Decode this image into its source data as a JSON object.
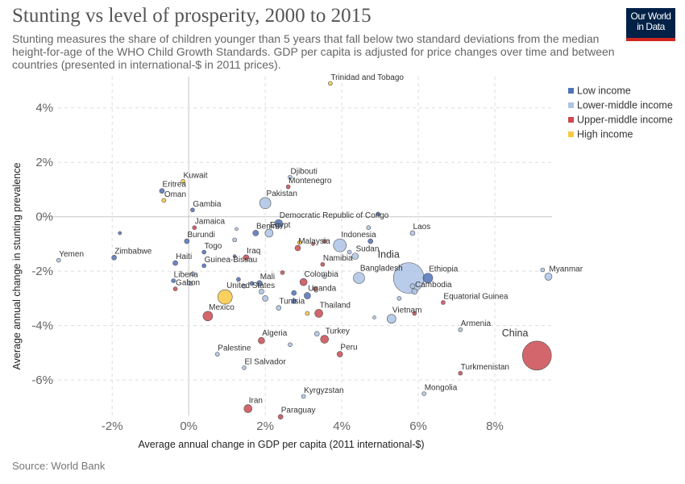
{
  "header": {
    "title": "Stunting vs level of prosperity, 2000 to 2015",
    "subtitle": "Stunting measures the share of children younger than 5 years that fall below two standard deviations from the median height-for-age of the WHO Child Growth Standards. GDP per capita is adjusted for price changes over time and between countries (presented in international-$ in 2011 prices)."
  },
  "logo": {
    "line1": "Our World",
    "line2": "in Data"
  },
  "footer": {
    "source": "Source: World Bank"
  },
  "colors": {
    "Low income": "#4f72b8",
    "Lower-middle income": "#adc3e6",
    "Upper-middle income": "#cb4a52",
    "High income": "#f9c842"
  },
  "chart_data": {
    "type": "scatter",
    "xlabel": "Average annual change in GDP per capita (2011 international-$)",
    "ylabel": "Average annual change in stunting prevalence",
    "xlim": [
      -3.9,
      9.6
    ],
    "ylim": [
      -7.3,
      5.0
    ],
    "xticks": [
      -2,
      0,
      2,
      4,
      6,
      8
    ],
    "yticks": [
      -6,
      -4,
      -2,
      0,
      2,
      4
    ],
    "xtick_labels": [
      "-2%",
      "0%",
      "2%",
      "4%",
      "6%",
      "8%"
    ],
    "ytick_labels": [
      "-6%",
      "-4%",
      "-2%",
      "0%",
      "2%",
      "4%"
    ],
    "grid": true,
    "legend_position": "top-right",
    "legend": [
      "Low income",
      "Lower-middle income",
      "Upper-middle income",
      "High income"
    ],
    "points": [
      {
        "label": "Trinidad and Tobago",
        "x": 3.7,
        "y": 4.9,
        "size": 2.5,
        "group": "High income"
      },
      {
        "label": "Kuwait",
        "x": -0.15,
        "y": 1.3,
        "size": 2.5,
        "group": "High income"
      },
      {
        "label": "Eritrea",
        "x": -0.7,
        "y": 0.95,
        "size": 3,
        "group": "Low income"
      },
      {
        "label": "Oman",
        "x": -0.65,
        "y": 0.6,
        "size": 2.5,
        "group": "High income"
      },
      {
        "label": "Gambia",
        "x": 0.1,
        "y": 0.25,
        "size": 2.5,
        "group": "Low income"
      },
      {
        "label": "Djibouti",
        "x": 2.65,
        "y": 1.45,
        "size": 2.5,
        "group": "Lower-middle income"
      },
      {
        "label": "Montenegro",
        "x": 2.6,
        "y": 1.1,
        "size": 2.5,
        "group": "Upper-middle income"
      },
      {
        "label": "Pakistan",
        "x": 2.0,
        "y": 0.5,
        "size": 7,
        "group": "Lower-middle income"
      },
      {
        "label": "Democratic Republic of Congo",
        "x": 2.35,
        "y": -0.25,
        "size": 5,
        "group": "Low income"
      },
      {
        "label": "Jamaica",
        "x": 0.15,
        "y": -0.4,
        "size": 2.5,
        "group": "Upper-middle income"
      },
      {
        "label": "Burundi",
        "x": -0.05,
        "y": -0.9,
        "size": 3,
        "group": "Low income"
      },
      {
        "label": "Benin",
        "x": 1.75,
        "y": -0.6,
        "size": 3.5,
        "group": "Low income"
      },
      {
        "label": "Egypt",
        "x": 2.1,
        "y": -0.6,
        "size": 5,
        "group": "Lower-middle income"
      },
      {
        "label": "Malaysia",
        "x": 2.85,
        "y": -1.15,
        "size": 3.5,
        "group": "Upper-middle income"
      },
      {
        "label": "Indonesia",
        "x": 3.95,
        "y": -1.05,
        "size": 8,
        "group": "Lower-middle income"
      },
      {
        "label": "Laos",
        "x": 5.85,
        "y": -0.6,
        "size": 3,
        "group": "Lower-middle income"
      },
      {
        "label": "Togo",
        "x": 0.4,
        "y": -1.3,
        "size": 2.5,
        "group": "Low income"
      },
      {
        "label": "Iraq",
        "x": 1.5,
        "y": -1.5,
        "size": 3.5,
        "group": "Upper-middle income"
      },
      {
        "label": "Guinea-Bissau",
        "x": 0.4,
        "y": -1.8,
        "size": 2.5,
        "group": "Low income"
      },
      {
        "label": "Sudan",
        "x": 4.35,
        "y": -1.45,
        "size": 4,
        "group": "Lower-middle income"
      },
      {
        "label": "Namibia",
        "x": 3.5,
        "y": -1.75,
        "size": 2.5,
        "group": "Upper-middle income"
      },
      {
        "label": "Yemen",
        "x": -3.4,
        "y": -1.6,
        "size": 2.5,
        "group": "Lower-middle income"
      },
      {
        "label": "Zimbabwe",
        "x": -1.95,
        "y": -1.5,
        "size": 3,
        "group": "Low income"
      },
      {
        "label": "Haiti",
        "x": -0.35,
        "y": -1.7,
        "size": 3,
        "group": "Low income"
      },
      {
        "label": "India",
        "x": 5.75,
        "y": -2.25,
        "size": 19,
        "group": "Lower-middle income"
      },
      {
        "label": "Ethiopia",
        "x": 6.25,
        "y": -2.25,
        "size": 6,
        "group": "Low income"
      },
      {
        "label": "Myanmar",
        "x": 9.4,
        "y": -2.2,
        "size": 4.5,
        "group": "Lower-middle income"
      },
      {
        "label": "Bangladesh",
        "x": 4.45,
        "y": -2.25,
        "size": 7,
        "group": "Lower-middle income"
      },
      {
        "label": "Colombia",
        "x": 3.0,
        "y": -2.4,
        "size": 4.5,
        "group": "Upper-middle income"
      },
      {
        "label": "Mali",
        "x": 1.85,
        "y": -2.45,
        "size": 3.5,
        "group": "Low income"
      },
      {
        "label": "Liberia",
        "x": -0.4,
        "y": -2.35,
        "size": 2.5,
        "group": "Low income"
      },
      {
        "label": "Gabon",
        "x": -0.35,
        "y": -2.65,
        "size": 2.5,
        "group": "Upper-middle income"
      },
      {
        "label": "United States",
        "x": 0.95,
        "y": -2.95,
        "size": 9,
        "group": "High income"
      },
      {
        "label": "Uganda",
        "x": 3.1,
        "y": -2.9,
        "size": 4,
        "group": "Low income"
      },
      {
        "label": "Cambodia",
        "x": 5.9,
        "y": -2.75,
        "size": 3.5,
        "group": "Lower-middle income"
      },
      {
        "label": "Equatorial Guinea",
        "x": 6.65,
        "y": -3.15,
        "size": 2.5,
        "group": "Upper-middle income"
      },
      {
        "label": "Tunisia",
        "x": 2.35,
        "y": -3.35,
        "size": 3,
        "group": "Lower-middle income"
      },
      {
        "label": "Mexico",
        "x": 0.5,
        "y": -3.65,
        "size": 6,
        "group": "Upper-middle income"
      },
      {
        "label": "Thailand",
        "x": 3.4,
        "y": -3.55,
        "size": 5,
        "group": "Upper-middle income"
      },
      {
        "label": "Vietnam",
        "x": 5.3,
        "y": -3.75,
        "size": 5.5,
        "group": "Lower-middle income"
      },
      {
        "label": "Armenia",
        "x": 7.1,
        "y": -4.15,
        "size": 2.5,
        "group": "Lower-middle income"
      },
      {
        "label": "China",
        "x": 9.1,
        "y": -5.1,
        "size": 18,
        "group": "Upper-middle income"
      },
      {
        "label": "Algeria",
        "x": 1.9,
        "y": -4.55,
        "size": 4,
        "group": "Upper-middle income"
      },
      {
        "label": "Turkey",
        "x": 3.55,
        "y": -4.5,
        "size": 5,
        "group": "Upper-middle income"
      },
      {
        "label": "Peru",
        "x": 3.95,
        "y": -5.05,
        "size": 3.5,
        "group": "Upper-middle income"
      },
      {
        "label": "Palestine",
        "x": 0.75,
        "y": -5.05,
        "size": 2.5,
        "group": "Lower-middle income"
      },
      {
        "label": "El Salvador",
        "x": 1.45,
        "y": -5.55,
        "size": 2.5,
        "group": "Lower-middle income"
      },
      {
        "label": "Turkmenistan",
        "x": 7.1,
        "y": -5.75,
        "size": 2.5,
        "group": "Upper-middle income"
      },
      {
        "label": "Mongolia",
        "x": 6.15,
        "y": -6.5,
        "size": 2.5,
        "group": "Lower-middle income"
      },
      {
        "label": "Kyrgyzstan",
        "x": 3.0,
        "y": -6.6,
        "size": 2.5,
        "group": "Lower-middle income"
      },
      {
        "label": "Iran",
        "x": 1.55,
        "y": -7.05,
        "size": 5,
        "group": "Upper-middle income"
      },
      {
        "label": "Paraguay",
        "x": 2.4,
        "y": -7.35,
        "size": 3,
        "group": "Upper-middle income"
      },
      {
        "label": "",
        "x": -1.8,
        "y": -0.6,
        "size": 2,
        "group": "Low income"
      },
      {
        "label": "",
        "x": 1.25,
        "y": -0.45,
        "size": 2,
        "group": "Lower-middle income"
      },
      {
        "label": "",
        "x": 1.2,
        "y": -0.85,
        "size": 2.5,
        "group": "Lower-middle income"
      },
      {
        "label": "",
        "x": 1.2,
        "y": -1.45,
        "size": 2,
        "group": "Low income"
      },
      {
        "label": "",
        "x": 2.9,
        "y": -0.95,
        "size": 2.5,
        "group": "High income"
      },
      {
        "label": "",
        "x": 3.25,
        "y": -1.0,
        "size": 2,
        "group": "Upper-middle income"
      },
      {
        "label": "",
        "x": 3.55,
        "y": -0.9,
        "size": 2.5,
        "group": "Upper-middle income"
      },
      {
        "label": "",
        "x": 4.7,
        "y": -0.4,
        "size": 2.5,
        "group": "Lower-middle income"
      },
      {
        "label": "",
        "x": 4.75,
        "y": -0.9,
        "size": 3,
        "group": "Low income"
      },
      {
        "label": "",
        "x": 4.95,
        "y": 0.1,
        "size": 2.5,
        "group": "Low income"
      },
      {
        "label": "",
        "x": 4.2,
        "y": -1.3,
        "size": 2.5,
        "group": "Lower-middle income"
      },
      {
        "label": "",
        "x": 3.55,
        "y": -2.2,
        "size": 2.5,
        "group": "Lower-middle income"
      },
      {
        "label": "",
        "x": 2.45,
        "y": -2.05,
        "size": 2.5,
        "group": "Upper-middle income"
      },
      {
        "label": "",
        "x": 2.75,
        "y": -2.8,
        "size": 3,
        "group": "Low income"
      },
      {
        "label": "",
        "x": 2.75,
        "y": -3.1,
        "size": 3,
        "group": "Low income"
      },
      {
        "label": "",
        "x": 3.3,
        "y": -2.65,
        "size": 2.5,
        "group": "Upper-middle income"
      },
      {
        "label": "",
        "x": 1.9,
        "y": -2.75,
        "size": 3,
        "group": "Lower-middle income"
      },
      {
        "label": "",
        "x": 1.3,
        "y": -2.3,
        "size": 2.5,
        "group": "Low income"
      },
      {
        "label": "",
        "x": 1.65,
        "y": -2.45,
        "size": 2.5,
        "group": "Low income"
      },
      {
        "label": "",
        "x": 0.05,
        "y": -2.45,
        "size": 2.5,
        "group": "Lower-middle income"
      },
      {
        "label": "",
        "x": 0.1,
        "y": -2.1,
        "size": 2.5,
        "group": "Lower-middle income"
      },
      {
        "label": "",
        "x": 2.0,
        "y": -3.0,
        "size": 3.5,
        "group": "Lower-middle income"
      },
      {
        "label": "",
        "x": 1.45,
        "y": -2.55,
        "size": 2.5,
        "group": "Lower-middle income"
      },
      {
        "label": "",
        "x": 3.1,
        "y": -3.55,
        "size": 2.5,
        "group": "High income"
      },
      {
        "label": "",
        "x": 5.85,
        "y": -2.55,
        "size": 3,
        "group": "Lower-middle income"
      },
      {
        "label": "",
        "x": 5.5,
        "y": -3.0,
        "size": 2.5,
        "group": "Lower-middle income"
      },
      {
        "label": "",
        "x": 4.85,
        "y": -3.7,
        "size": 2,
        "group": "Lower-middle income"
      },
      {
        "label": "",
        "x": 5.9,
        "y": -3.55,
        "size": 2.5,
        "group": "Upper-middle income"
      },
      {
        "label": "",
        "x": 3.35,
        "y": -4.3,
        "size": 3,
        "group": "Lower-middle income"
      },
      {
        "label": "",
        "x": 2.65,
        "y": -4.7,
        "size": 2.5,
        "group": "Lower-middle income"
      },
      {
        "label": "",
        "x": 9.25,
        "y": -1.95,
        "size": 2.5,
        "group": "Lower-middle income"
      }
    ]
  }
}
